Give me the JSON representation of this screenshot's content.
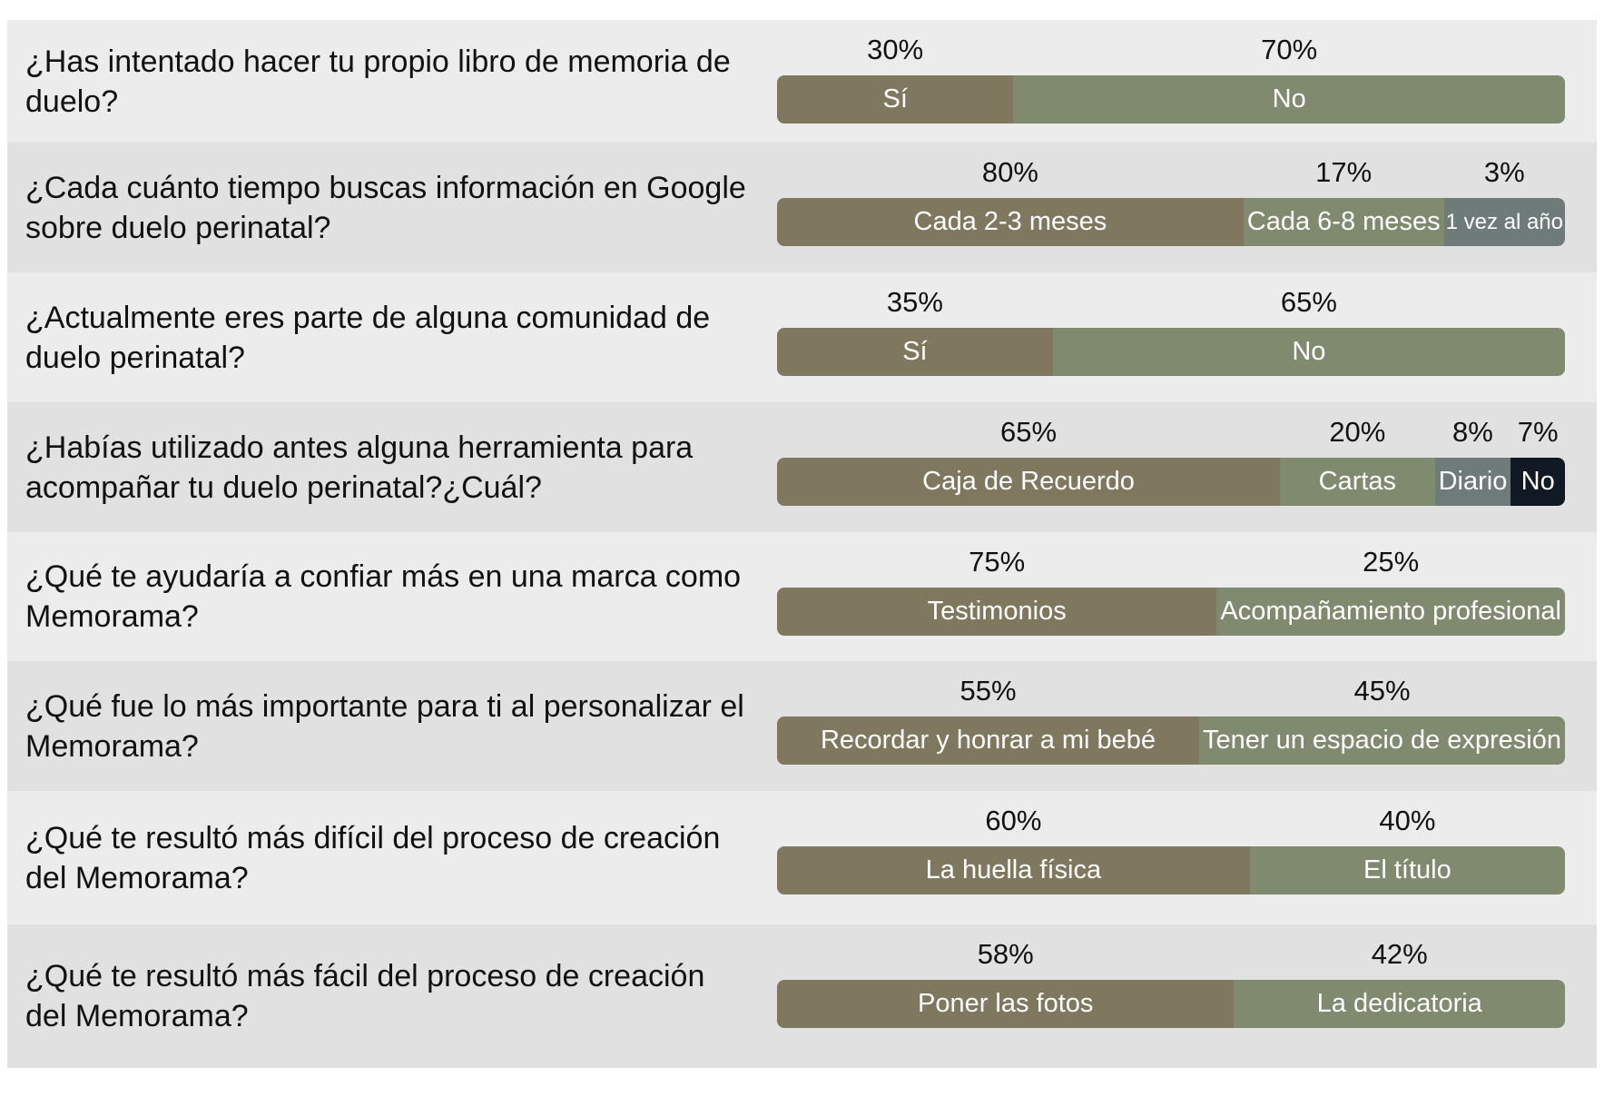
{
  "colors": {
    "brown": "#80775f",
    "green": "#7f8a6e",
    "slate": "#6f7b78",
    "dark": "#111a24",
    "row_light": "#ececec",
    "row_dark": "#e1e1e1"
  },
  "chart_data": {
    "type": "table",
    "title": "",
    "rows": [
      {
        "question": "¿Has intentado hacer tu propio libro de memoria de duelo?",
        "answers": [
          {
            "label": "Sí",
            "value": 30
          },
          {
            "label": "No",
            "value": 70
          }
        ]
      },
      {
        "question": "¿Cada cuánto tiempo buscas información en Google sobre duelo perinatal?",
        "answers": [
          {
            "label": "Cada 2-3 meses",
            "value": 80
          },
          {
            "label": "Cada 6-8 meses",
            "value": 17
          },
          {
            "label": "1 vez al año",
            "value": 3
          }
        ]
      },
      {
        "question": "¿Actualmente eres parte de alguna comunidad de duelo perinatal?",
        "answers": [
          {
            "label": "Sí",
            "value": 35
          },
          {
            "label": "No",
            "value": 65
          }
        ]
      },
      {
        "question": "¿Habías utilizado antes alguna herramienta para acompañar tu duelo perinatal?¿Cuál?",
        "answers": [
          {
            "label": "Caja de Recuerdo",
            "value": 65
          },
          {
            "label": "Cartas",
            "value": 20
          },
          {
            "label": "Diario",
            "value": 8
          },
          {
            "label": "No",
            "value": 7
          }
        ]
      },
      {
        "question": "¿Qué te ayudaría a confiar más en una marca como Memorama?",
        "answers": [
          {
            "label": "Testimonios",
            "value": 75
          },
          {
            "label": "Acompañamiento profesional",
            "value": 25
          }
        ]
      },
      {
        "question": "¿Qué fue lo más importante para ti al personalizar el Memorama?",
        "answers": [
          {
            "label": "Recordar y honrar a mi bebé",
            "value": 55
          },
          {
            "label": "Tener un espacio de expresión",
            "value": 45
          }
        ]
      },
      {
        "question": "¿Qué te resultó más difícil del proceso de creación del Memorama?",
        "answers": [
          {
            "label": "La huella física",
            "value": 60
          },
          {
            "label": "El título",
            "value": 40
          }
        ]
      },
      {
        "question": "¿Qué te resultó más fácil del proceso de creación del Memorama?",
        "answers": [
          {
            "label": "Poner las fotos",
            "value": 58
          },
          {
            "label": "La dedicatoria",
            "value": 42
          }
        ]
      }
    ]
  }
}
